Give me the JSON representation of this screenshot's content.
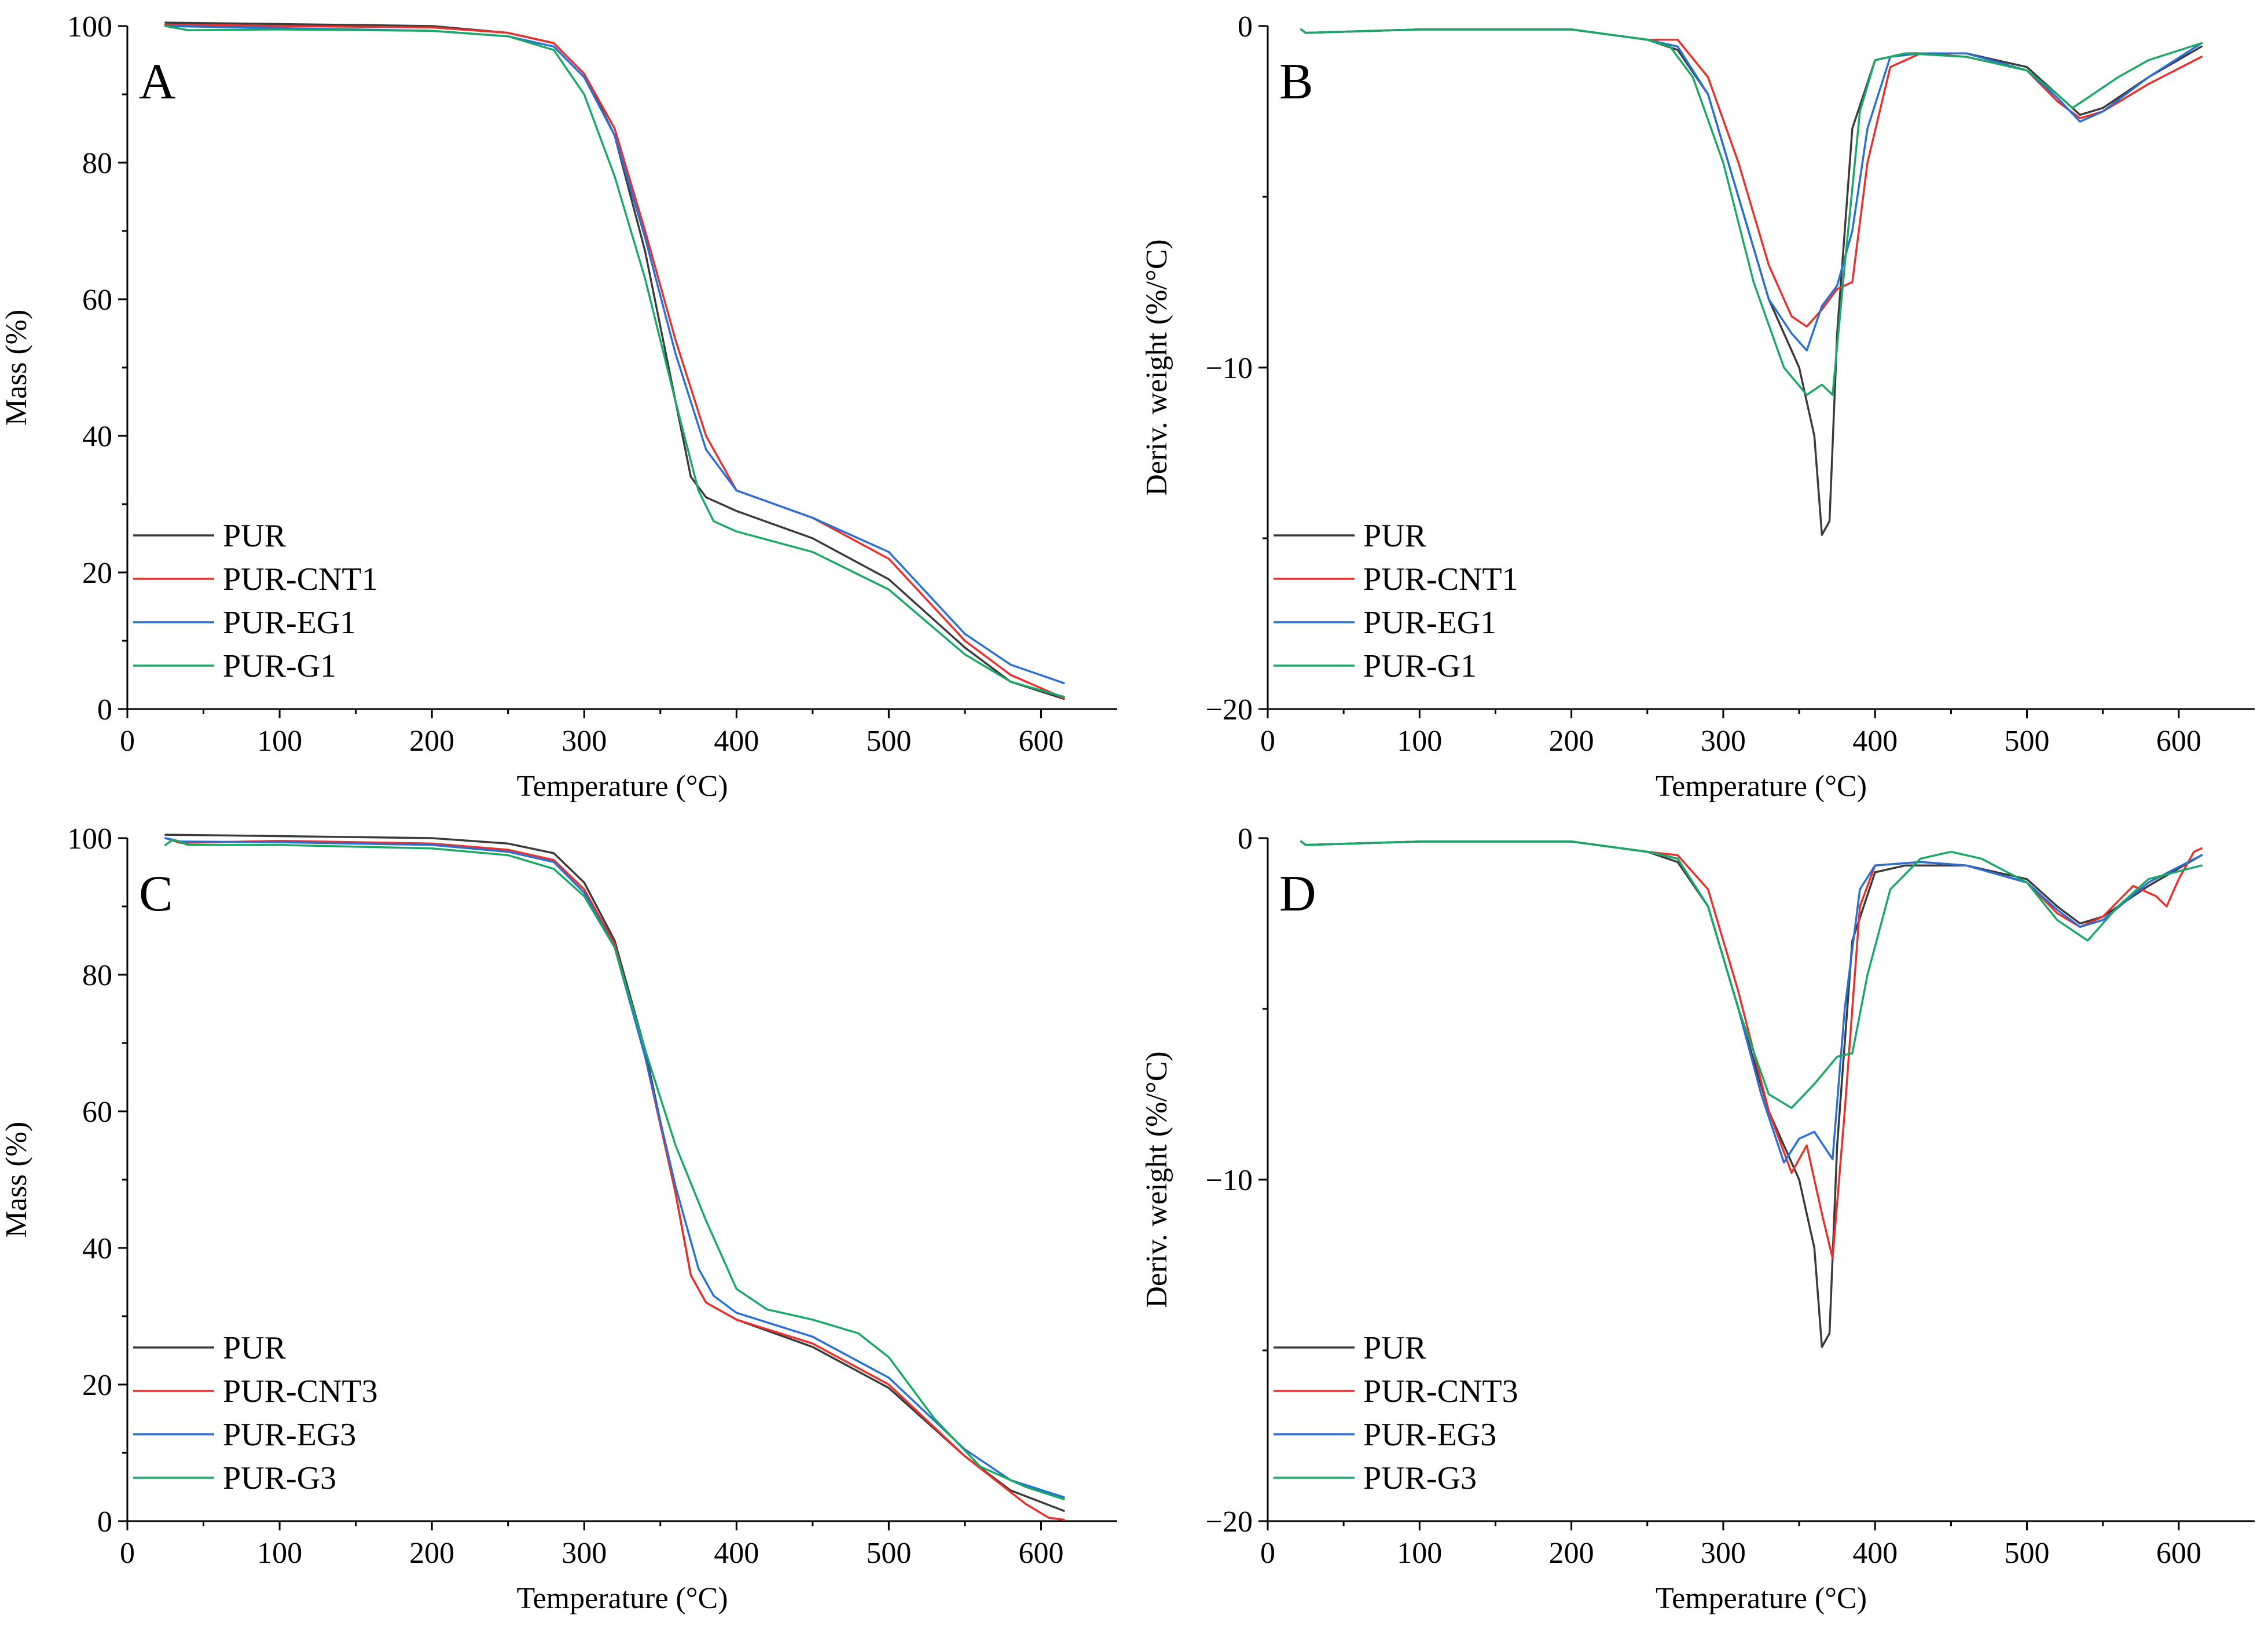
{
  "colors": {
    "PUR": "#3a3a3a",
    "CNT": "#e8302c",
    "EG": "#2a6fd4",
    "G": "#1aa866"
  },
  "chart_data": [
    {
      "type": "line",
      "panel_label": "A",
      "xlabel": "Temperature (°C)",
      "ylabel": "Mass (%)",
      "xlim": [
        0,
        650
      ],
      "ylim": [
        0,
        100
      ],
      "xticks": [
        "0",
        "100",
        "200",
        "300",
        "400",
        "500",
        "600"
      ],
      "yticks": [
        "0",
        "20",
        "40",
        "60",
        "80",
        "100"
      ],
      "xtick_values": [
        0,
        100,
        200,
        300,
        400,
        500,
        600
      ],
      "ytick_values": [
        0,
        20,
        40,
        60,
        80,
        100
      ],
      "legend_position": "lower-left",
      "series": [
        {
          "name": "PUR",
          "color": "#3a3a3a",
          "x": [
            25,
            100,
            200,
            250,
            280,
            300,
            320,
            340,
            360,
            370,
            380,
            400,
            450,
            500,
            550,
            580,
            615
          ],
          "y": [
            100.5,
            100.3,
            100,
            99,
            97.5,
            93,
            84,
            67,
            45,
            34,
            31,
            29,
            25,
            19,
            9,
            4,
            1.5
          ]
        },
        {
          "name": "PUR-CNT1",
          "color": "#e8302c",
          "x": [
            25,
            100,
            200,
            250,
            280,
            300,
            320,
            340,
            360,
            380,
            400,
            450,
            500,
            550,
            580,
            615
          ],
          "y": [
            100.2,
            100,
            99.8,
            99,
            97.5,
            93,
            85,
            70,
            54,
            40,
            32,
            28,
            22,
            10,
            5,
            1.6
          ]
        },
        {
          "name": "PUR-EG1",
          "color": "#2a6fd4",
          "x": [
            25,
            100,
            200,
            250,
            280,
            300,
            320,
            340,
            360,
            380,
            400,
            450,
            500,
            550,
            580,
            615
          ],
          "y": [
            100,
            99.7,
            99.3,
            98.5,
            97,
            92.5,
            84,
            69,
            52,
            38,
            32,
            28,
            23,
            11,
            6.5,
            3.8
          ]
        },
        {
          "name": "PUR-G1",
          "color": "#1aa866",
          "x": [
            25,
            40,
            100,
            200,
            250,
            280,
            300,
            320,
            340,
            360,
            375,
            385,
            400,
            450,
            500,
            550,
            580,
            615
          ],
          "y": [
            100,
            99.4,
            99.5,
            99.3,
            98.5,
            96.5,
            90,
            78,
            63,
            45,
            32,
            27.5,
            26,
            23,
            17.5,
            8,
            4,
            1.8
          ]
        }
      ]
    },
    {
      "type": "line",
      "panel_label": "B",
      "xlabel": "Temperature (°C)",
      "ylabel": "Deriv. weight (%/°C)",
      "xlim": [
        0,
        650
      ],
      "ylim": [
        -20,
        0
      ],
      "xticks": [
        "0",
        "100",
        "200",
        "300",
        "400",
        "500",
        "600"
      ],
      "yticks": [
        "−20",
        "−10",
        "0"
      ],
      "xtick_values": [
        0,
        100,
        200,
        300,
        400,
        500,
        600
      ],
      "ytick_values": [
        -20,
        -10,
        0
      ],
      "legend_position": "lower-left",
      "series": [
        {
          "name": "PUR",
          "color": "#3a3a3a",
          "x": [
            22,
            25,
            100,
            200,
            250,
            270,
            290,
            310,
            330,
            350,
            360,
            365,
            370,
            375,
            385,
            400,
            420,
            460,
            500,
            520,
            535,
            550,
            580,
            615
          ],
          "y": [
            -0.1,
            -0.2,
            -0.1,
            -0.1,
            -0.4,
            -0.7,
            -2,
            -5,
            -8,
            -10,
            -12,
            -14.9,
            -14.5,
            -9,
            -3,
            -1,
            -0.8,
            -0.8,
            -1.2,
            -2,
            -2.6,
            -2.4,
            -1.5,
            -0.6
          ]
        },
        {
          "name": "PUR-CNT1",
          "color": "#e8302c",
          "x": [
            22,
            25,
            100,
            200,
            250,
            270,
            290,
            310,
            330,
            345,
            355,
            365,
            375,
            385,
            395,
            410,
            430,
            460,
            500,
            520,
            535,
            550,
            580,
            615
          ],
          "y": [
            -0.1,
            -0.2,
            -0.1,
            -0.1,
            -0.4,
            -0.4,
            -1.5,
            -4,
            -7,
            -8.5,
            -8.8,
            -8.3,
            -7.7,
            -7.5,
            -4,
            -1.2,
            -0.8,
            -0.9,
            -1.3,
            -2.2,
            -2.7,
            -2.5,
            -1.7,
            -0.9
          ]
        },
        {
          "name": "PUR-EG1",
          "color": "#2a6fd4",
          "x": [
            22,
            25,
            100,
            200,
            250,
            270,
            290,
            310,
            330,
            345,
            355,
            365,
            375,
            385,
            395,
            410,
            430,
            460,
            500,
            520,
            535,
            550,
            580,
            615
          ],
          "y": [
            -0.1,
            -0.2,
            -0.1,
            -0.1,
            -0.4,
            -0.6,
            -2,
            -5,
            -8,
            -9,
            -9.5,
            -8.2,
            -7.6,
            -6,
            -3,
            -0.9,
            -0.8,
            -0.8,
            -1.3,
            -2.1,
            -2.8,
            -2.5,
            -1.5,
            -0.5
          ]
        },
        {
          "name": "PUR-G1",
          "color": "#1aa866",
          "x": [
            22,
            25,
            100,
            200,
            250,
            265,
            280,
            300,
            320,
            340,
            355,
            365,
            372,
            380,
            390,
            400,
            420,
            460,
            500,
            520,
            530,
            540,
            560,
            580,
            615
          ],
          "y": [
            -0.1,
            -0.2,
            -0.1,
            -0.1,
            -0.4,
            -0.6,
            -1.5,
            -4,
            -7.5,
            -10,
            -10.8,
            -10.5,
            -10.8,
            -7,
            -2.5,
            -1,
            -0.8,
            -0.9,
            -1.3,
            -2,
            -2.4,
            -2.1,
            -1.5,
            -1,
            -0.5
          ]
        }
      ]
    },
    {
      "type": "line",
      "panel_label": "C",
      "xlabel": "Temperature (°C)",
      "ylabel": "Mass (%)",
      "xlim": [
        0,
        650
      ],
      "ylim": [
        0,
        100
      ],
      "xticks": [
        "0",
        "100",
        "200",
        "300",
        "400",
        "500",
        "600"
      ],
      "yticks": [
        "0",
        "20",
        "40",
        "60",
        "80",
        "100"
      ],
      "xtick_values": [
        0,
        100,
        200,
        300,
        400,
        500,
        600
      ],
      "ytick_values": [
        0,
        20,
        40,
        60,
        80,
        100
      ],
      "legend_position": "lower-left",
      "series": [
        {
          "name": "PUR",
          "color": "#3a3a3a",
          "x": [
            25,
            100,
            200,
            250,
            280,
            300,
            320,
            340,
            360,
            370,
            380,
            400,
            450,
            500,
            550,
            580,
            615
          ],
          "y": [
            100.5,
            100.3,
            100,
            99.2,
            97.8,
            93.5,
            85,
            69,
            48,
            36,
            32,
            29.5,
            25.5,
            19.5,
            9.5,
            4.5,
            1.5
          ]
        },
        {
          "name": "PUR-CNT3",
          "color": "#e8302c",
          "x": [
            25,
            35,
            100,
            200,
            250,
            280,
            300,
            320,
            340,
            360,
            370,
            380,
            400,
            450,
            500,
            550,
            590,
            605,
            615
          ],
          "y": [
            100,
            99.3,
            99.6,
            99.2,
            98.3,
            96.8,
            92.5,
            84.5,
            68,
            48,
            36,
            32,
            29.5,
            26,
            20,
            9.5,
            2.5,
            0.5,
            0.2
          ]
        },
        {
          "name": "PUR-EG3",
          "color": "#2a6fd4",
          "x": [
            25,
            35,
            100,
            200,
            250,
            280,
            300,
            320,
            340,
            360,
            375,
            385,
            400,
            450,
            500,
            550,
            580,
            615
          ],
          "y": [
            100,
            99.5,
            99.4,
            99,
            98,
            96.5,
            92,
            84,
            68,
            49,
            37,
            33,
            30.5,
            27,
            21,
            10.5,
            6,
            3.5
          ]
        },
        {
          "name": "PUR-G3",
          "color": "#1aa866",
          "x": [
            25,
            30,
            40,
            100,
            200,
            250,
            280,
            300,
            320,
            340,
            360,
            380,
            400,
            420,
            450,
            480,
            500,
            530,
            560,
            590,
            615
          ],
          "y": [
            99,
            99.8,
            99,
            99,
            98.5,
            97.5,
            95.5,
            91.5,
            84,
            69,
            55,
            44,
            34,
            31,
            29.5,
            27.5,
            24,
            15,
            8,
            5,
            3.2
          ]
        }
      ]
    },
    {
      "type": "line",
      "panel_label": "D",
      "xlabel": "Temperature (°C)",
      "ylabel": "Deriv. weight (%/°C)",
      "xlim": [
        0,
        650
      ],
      "ylim": [
        -20,
        0
      ],
      "xticks": [
        "0",
        "100",
        "200",
        "300",
        "400",
        "500",
        "600"
      ],
      "yticks": [
        "−20",
        "−10",
        "0"
      ],
      "xtick_values": [
        0,
        100,
        200,
        300,
        400,
        500,
        600
      ],
      "ytick_values": [
        -20,
        -10,
        0
      ],
      "legend_position": "lower-left",
      "series": [
        {
          "name": "PUR",
          "color": "#3a3a3a",
          "x": [
            22,
            25,
            100,
            200,
            250,
            270,
            290,
            310,
            330,
            350,
            360,
            365,
            370,
            375,
            385,
            400,
            420,
            460,
            500,
            520,
            535,
            550,
            580,
            615
          ],
          "y": [
            -0.1,
            -0.2,
            -0.1,
            -0.1,
            -0.4,
            -0.7,
            -2,
            -5,
            -8,
            -10,
            -12,
            -14.9,
            -14.5,
            -9,
            -3,
            -1,
            -0.8,
            -0.8,
            -1.2,
            -2,
            -2.5,
            -2.3,
            -1.4,
            -0.5
          ]
        },
        {
          "name": "PUR-CNT3",
          "color": "#e8302c",
          "x": [
            22,
            25,
            100,
            200,
            250,
            270,
            290,
            310,
            330,
            345,
            355,
            365,
            372,
            380,
            390,
            400,
            430,
            460,
            500,
            520,
            535,
            550,
            570,
            585,
            592,
            600,
            610,
            615
          ],
          "y": [
            -0.1,
            -0.2,
            -0.1,
            -0.1,
            -0.4,
            -0.5,
            -1.5,
            -4.5,
            -8,
            -9.8,
            -9,
            -11,
            -12.3,
            -8,
            -2,
            -0.8,
            -0.7,
            -0.8,
            -1.3,
            -2.2,
            -2.6,
            -2.3,
            -1.4,
            -1.7,
            -2,
            -1.2,
            -0.4,
            -0.3
          ]
        },
        {
          "name": "PUR-EG3",
          "color": "#2a6fd4",
          "x": [
            22,
            25,
            100,
            200,
            250,
            270,
            290,
            310,
            325,
            340,
            350,
            360,
            372,
            380,
            390,
            400,
            430,
            460,
            500,
            520,
            535,
            550,
            580,
            615
          ],
          "y": [
            -0.1,
            -0.2,
            -0.1,
            -0.1,
            -0.4,
            -0.6,
            -2,
            -5,
            -7.5,
            -9.5,
            -8.8,
            -8.6,
            -9.4,
            -5,
            -1.5,
            -0.8,
            -0.7,
            -0.8,
            -1.3,
            -2.1,
            -2.6,
            -2.4,
            -1.3,
            -0.5
          ]
        },
        {
          "name": "PUR-G3",
          "color": "#1aa866",
          "x": [
            22,
            25,
            100,
            200,
            250,
            270,
            290,
            310,
            330,
            345,
            360,
            375,
            385,
            395,
            410,
            430,
            450,
            470,
            500,
            520,
            540,
            560,
            580,
            615
          ],
          "y": [
            -0.1,
            -0.2,
            -0.1,
            -0.1,
            -0.4,
            -0.6,
            -2,
            -5,
            -7.5,
            -7.9,
            -7.2,
            -6.4,
            -6.3,
            -4,
            -1.5,
            -0.6,
            -0.4,
            -0.6,
            -1.3,
            -2.4,
            -3,
            -2,
            -1.2,
            -0.8
          ]
        }
      ]
    }
  ]
}
